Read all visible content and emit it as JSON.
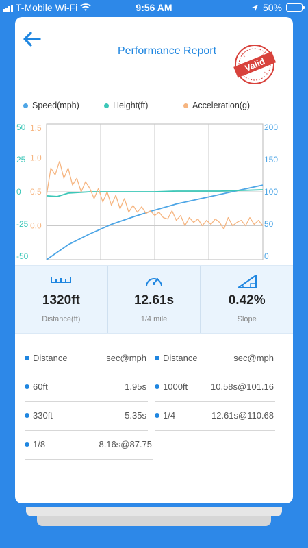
{
  "status_bar": {
    "carrier": "T-Mobile Wi-Fi",
    "time": "9:56 AM",
    "battery": "50%",
    "battery_level": 0.5
  },
  "header": {
    "title": "Performance Report",
    "stamp_text": "Valid"
  },
  "legend": [
    {
      "label": "Speed(mph)",
      "color": "#4ea6e6"
    },
    {
      "label": "Height(ft)",
      "color": "#3cc7b8"
    },
    {
      "label": "Acceleration(g)",
      "color": "#f6b580"
    }
  ],
  "chart_data": {
    "type": "line",
    "axes": {
      "speed_axis": {
        "ticks": [
          "50",
          "25",
          "0",
          "-25",
          "-50"
        ],
        "color": "#3cc7b8",
        "range": [
          -50,
          50
        ]
      },
      "accel_axis": {
        "ticks": [
          "1.5",
          "1.0",
          "0.5",
          "0.0"
        ],
        "color": "#f6b580",
        "range": [
          -0.5,
          1.5
        ]
      },
      "right_axis": {
        "ticks": [
          "200",
          "150",
          "100",
          "50",
          "0"
        ],
        "color": "#4ea6e6",
        "range": [
          0,
          200
        ]
      }
    },
    "grid": true,
    "series": [
      {
        "name": "Speed(mph)",
        "axis": "right",
        "x": [
          0,
          0.1,
          0.2,
          0.3,
          0.4,
          0.5,
          0.6,
          0.7,
          0.8,
          0.9,
          1.0
        ],
        "values": [
          0,
          22,
          38,
          52,
          63,
          73,
          82,
          89,
          96,
          103,
          110
        ]
      },
      {
        "name": "Height(ft)",
        "axis": "left",
        "x": [
          0,
          0.05,
          0.1,
          0.2,
          0.3,
          0.4,
          0.5,
          0.6,
          0.7,
          0.8,
          0.9,
          1.0
        ],
        "values": [
          -3,
          -3.5,
          -1,
          0,
          0,
          0,
          0,
          0.5,
          0.5,
          0.5,
          1,
          1.5
        ]
      },
      {
        "name": "Acceleration(g)",
        "axis": "accel",
        "x": [
          0,
          0.02,
          0.04,
          0.06,
          0.08,
          0.1,
          0.12,
          0.14,
          0.16,
          0.18,
          0.2,
          0.22,
          0.24,
          0.26,
          0.28,
          0.3,
          0.32,
          0.34,
          0.36,
          0.38,
          0.4,
          0.42,
          0.44,
          0.46,
          0.48,
          0.5,
          0.52,
          0.54,
          0.56,
          0.58,
          0.6,
          0.62,
          0.64,
          0.66,
          0.68,
          0.7,
          0.72,
          0.74,
          0.76,
          0.78,
          0.8,
          0.82,
          0.84,
          0.86,
          0.88,
          0.9,
          0.92,
          0.94,
          0.96,
          0.98,
          1.0
        ],
        "values": [
          0.45,
          0.85,
          0.75,
          0.95,
          0.7,
          0.85,
          0.6,
          0.7,
          0.5,
          0.65,
          0.55,
          0.4,
          0.55,
          0.35,
          0.5,
          0.3,
          0.45,
          0.25,
          0.4,
          0.2,
          0.3,
          0.2,
          0.28,
          0.18,
          0.22,
          0.15,
          0.2,
          0.12,
          0.1,
          0.22,
          0.08,
          0.15,
          0.0,
          0.12,
          0.05,
          0.1,
          0.0,
          0.08,
          0.02,
          0.1,
          0.05,
          -0.05,
          0.12,
          0.0,
          0.05,
          0.08,
          0.0,
          0.12,
          0.02,
          0.08,
          0.0
        ]
      }
    ]
  },
  "stats": [
    {
      "icon": "ruler-icon",
      "value": "1320ft",
      "label": "Distance(ft)"
    },
    {
      "icon": "speedometer-icon",
      "value": "12.61s",
      "label": "1/4 mile"
    },
    {
      "icon": "slope-icon",
      "value": "0.42%",
      "label": "Slope"
    }
  ],
  "results": {
    "header": {
      "distance": "Distance",
      "unit": "sec@mph"
    },
    "rows": [
      {
        "left": {
          "name": "60ft",
          "value": "1.95s"
        },
        "right": {
          "name": "1000ft",
          "value": "10.58s@101.16"
        }
      },
      {
        "left": {
          "name": "330ft",
          "value": "5.35s"
        },
        "right": {
          "name": "1/4",
          "value": "12.61s@110.68"
        }
      },
      {
        "left": {
          "name": "1/8",
          "value": "8.16s@87.75"
        },
        "right": null
      }
    ]
  }
}
